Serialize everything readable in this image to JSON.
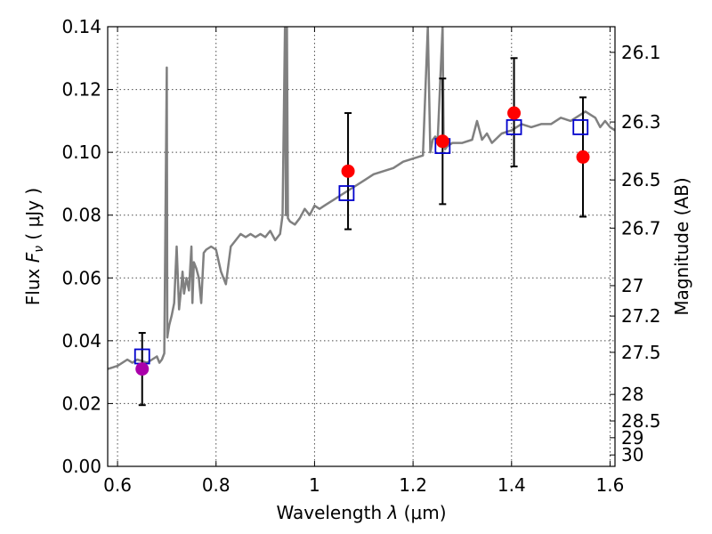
{
  "chart_data": {
    "type": "scatter",
    "xlabel": "Wavelength  λ (μm)",
    "ylabel": "Flux  Fν  ( μJy )",
    "ylabel_parts": {
      "prefix": "Flux  ",
      "var": "F",
      "sub": "ν",
      "suffix": "  ( μJy )"
    },
    "xlabel_parts": {
      "prefix": "Wavelength  ",
      "var": "λ",
      "suffix": " (μm)"
    },
    "y2label": "Magnitude (AB)",
    "xlim": [
      0.58,
      1.61
    ],
    "ylim": [
      0.0,
      0.14
    ],
    "grid": true,
    "x_ticks": [
      {
        "value": 0.6,
        "label": "0.6"
      },
      {
        "value": 0.8,
        "label": "0.8"
      },
      {
        "value": 1.0,
        "label": "1"
      },
      {
        "value": 1.2,
        "label": "1.2"
      },
      {
        "value": 1.4,
        "label": "1.4"
      },
      {
        "value": 1.6,
        "label": "1.6"
      }
    ],
    "y_ticks": [
      {
        "value": 0.0,
        "label": "0.00"
      },
      {
        "value": 0.02,
        "label": "0.02"
      },
      {
        "value": 0.04,
        "label": "0.04"
      },
      {
        "value": 0.06,
        "label": "0.06"
      },
      {
        "value": 0.08,
        "label": "0.08"
      },
      {
        "value": 0.1,
        "label": "0.10"
      },
      {
        "value": 0.12,
        "label": "0.12"
      },
      {
        "value": 0.14,
        "label": "0.14"
      }
    ],
    "y2_ticks": [
      {
        "mag": 26.1,
        "label": "26.1"
      },
      {
        "mag": 26.3,
        "label": "26.3"
      },
      {
        "mag": 26.5,
        "label": "26.5"
      },
      {
        "mag": 26.7,
        "label": "26.7"
      },
      {
        "mag": 27.0,
        "label": "27"
      },
      {
        "mag": 27.2,
        "label": "27.2"
      },
      {
        "mag": 27.5,
        "label": "27.5"
      },
      {
        "mag": 28.0,
        "label": "28"
      },
      {
        "mag": 28.5,
        "label": "28.5"
      },
      {
        "mag": 29.0,
        "label": "29"
      },
      {
        "mag": 30.0,
        "label": "30"
      }
    ],
    "series": [
      {
        "name": "model spectrum",
        "kind": "line",
        "color": "#808080",
        "x": [
          0.58,
          0.6,
          0.62,
          0.63,
          0.64,
          0.66,
          0.67,
          0.68,
          0.685,
          0.69,
          0.695,
          0.7,
          0.701,
          0.702,
          0.705,
          0.71,
          0.715,
          0.72,
          0.725,
          0.73,
          0.732,
          0.735,
          0.74,
          0.745,
          0.75,
          0.752,
          0.755,
          0.76,
          0.765,
          0.77,
          0.775,
          0.78,
          0.79,
          0.8,
          0.81,
          0.82,
          0.83,
          0.84,
          0.85,
          0.86,
          0.87,
          0.88,
          0.89,
          0.9,
          0.91,
          0.92,
          0.93,
          0.935,
          0.94,
          0.942,
          0.944,
          0.946,
          0.95,
          0.96,
          0.97,
          0.98,
          0.99,
          1.0,
          1.01,
          1.02,
          1.03,
          1.04,
          1.05,
          1.06,
          1.08,
          1.1,
          1.12,
          1.14,
          1.16,
          1.18,
          1.2,
          1.22,
          1.23,
          1.235,
          1.24,
          1.245,
          1.25,
          1.26,
          1.262,
          1.265,
          1.27,
          1.28,
          1.3,
          1.32,
          1.33,
          1.34,
          1.35,
          1.36,
          1.38,
          1.4,
          1.42,
          1.44,
          1.46,
          1.48,
          1.5,
          1.52,
          1.54,
          1.55,
          1.56,
          1.57,
          1.58,
          1.59,
          1.6,
          1.61
        ],
        "y": [
          0.031,
          0.032,
          0.034,
          0.033,
          0.034,
          0.033,
          0.034,
          0.035,
          0.033,
          0.034,
          0.036,
          0.127,
          0.041,
          0.042,
          0.045,
          0.048,
          0.052,
          0.07,
          0.05,
          0.058,
          0.062,
          0.055,
          0.06,
          0.056,
          0.07,
          0.052,
          0.065,
          0.063,
          0.06,
          0.052,
          0.068,
          0.069,
          0.07,
          0.069,
          0.062,
          0.058,
          0.07,
          0.072,
          0.074,
          0.073,
          0.074,
          0.073,
          0.074,
          0.073,
          0.075,
          0.072,
          0.074,
          0.08,
          0.14,
          0.08,
          0.14,
          0.079,
          0.078,
          0.077,
          0.079,
          0.082,
          0.08,
          0.083,
          0.082,
          0.083,
          0.084,
          0.085,
          0.086,
          0.087,
          0.089,
          0.091,
          0.093,
          0.094,
          0.095,
          0.097,
          0.098,
          0.099,
          0.14,
          0.1,
          0.104,
          0.105,
          0.104,
          0.14,
          0.105,
          0.101,
          0.102,
          0.103,
          0.103,
          0.104,
          0.11,
          0.104,
          0.106,
          0.103,
          0.106,
          0.107,
          0.109,
          0.108,
          0.109,
          0.109,
          0.111,
          0.11,
          0.112,
          0.113,
          0.112,
          0.111,
          0.108,
          0.11,
          0.108,
          0.107
        ]
      },
      {
        "name": "model photometry",
        "kind": "open-square",
        "color": "#0000cc",
        "x": [
          0.65,
          1.065,
          1.26,
          1.405,
          1.54
        ],
        "y": [
          0.035,
          0.087,
          0.102,
          0.108,
          0.108
        ]
      },
      {
        "name": "observed photometry",
        "kind": "filled-circle",
        "color": "#ff0000",
        "x": [
          1.068,
          1.26,
          1.405,
          1.545
        ],
        "y": [
          0.094,
          0.1035,
          0.1125,
          0.0985
        ]
      },
      {
        "name": "observed photometry (short band)",
        "kind": "filled-circle",
        "color": "#aa00aa",
        "x": [
          0.65
        ],
        "y": [
          0.031
        ]
      },
      {
        "name": "error bars",
        "kind": "errorbar",
        "color": "#000000",
        "x": [
          0.65,
          1.068,
          1.26,
          1.405,
          1.545
        ],
        "y_low": [
          0.0195,
          0.0755,
          0.0835,
          0.0955,
          0.0795
        ],
        "y_high": [
          0.0425,
          0.1125,
          0.1235,
          0.13,
          0.1175
        ]
      }
    ]
  }
}
